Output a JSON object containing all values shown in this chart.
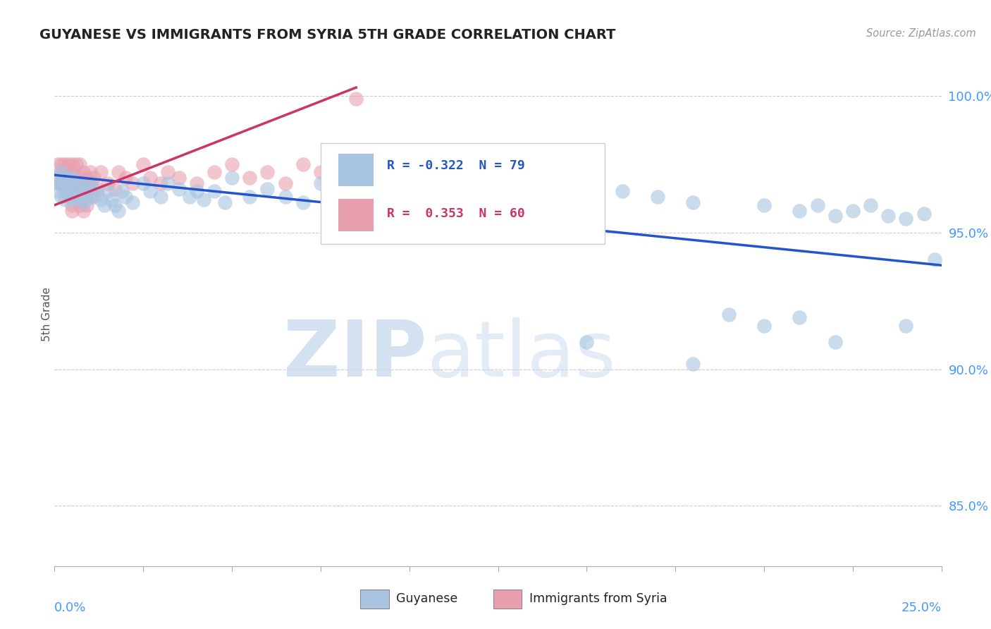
{
  "title": "GUYANESE VS IMMIGRANTS FROM SYRIA 5TH GRADE CORRELATION CHART",
  "source": "Source: ZipAtlas.com",
  "ylabel": "5th Grade",
  "ytick_values": [
    0.85,
    0.9,
    0.95,
    1.0
  ],
  "ytick_labels": [
    "85.0%",
    "90.0%",
    "95.0%",
    "100.0%"
  ],
  "xlim": [
    0.0,
    0.25
  ],
  "ylim": [
    0.828,
    1.012
  ],
  "legend1_label": "Guyanese",
  "legend2_label": "Immigrants from Syria",
  "R_blue": "-0.322",
  "N_blue": 79,
  "R_pink": "0.353",
  "N_pink": 60,
  "blue_color": "#a8c4e0",
  "pink_color": "#e8a0b0",
  "blue_line_color": "#2255cc",
  "pink_line_color": "#cc3366",
  "blue_line_x": [
    0.0,
    0.25
  ],
  "blue_line_y": [
    0.971,
    0.938
  ],
  "pink_line_x": [
    0.0,
    0.085
  ],
  "pink_line_y": [
    0.96,
    1.003
  ],
  "blue_dots_x": [
    0.001,
    0.001,
    0.001,
    0.002,
    0.002,
    0.002,
    0.003,
    0.003,
    0.003,
    0.004,
    0.004,
    0.005,
    0.005,
    0.005,
    0.006,
    0.006,
    0.007,
    0.007,
    0.008,
    0.008,
    0.009,
    0.009,
    0.01,
    0.01,
    0.011,
    0.012,
    0.013,
    0.014,
    0.015,
    0.016,
    0.017,
    0.018,
    0.019,
    0.02,
    0.022,
    0.025,
    0.027,
    0.03,
    0.032,
    0.035,
    0.038,
    0.04,
    0.042,
    0.045,
    0.048,
    0.05,
    0.055,
    0.06,
    0.065,
    0.07,
    0.075,
    0.08,
    0.09,
    0.1,
    0.11,
    0.12,
    0.13,
    0.14,
    0.15,
    0.16,
    0.17,
    0.18,
    0.19,
    0.2,
    0.21,
    0.215,
    0.22,
    0.225,
    0.23,
    0.235,
    0.24,
    0.245,
    0.248,
    0.15,
    0.18,
    0.2,
    0.21,
    0.22,
    0.24
  ],
  "blue_dots_y": [
    0.97,
    0.968,
    0.965,
    0.972,
    0.968,
    0.963,
    0.97,
    0.966,
    0.962,
    0.968,
    0.964,
    0.97,
    0.966,
    0.962,
    0.968,
    0.963,
    0.968,
    0.963,
    0.966,
    0.961,
    0.966,
    0.962,
    0.968,
    0.963,
    0.966,
    0.964,
    0.962,
    0.96,
    0.965,
    0.962,
    0.96,
    0.958,
    0.965,
    0.963,
    0.961,
    0.968,
    0.965,
    0.963,
    0.968,
    0.966,
    0.963,
    0.965,
    0.962,
    0.965,
    0.961,
    0.97,
    0.963,
    0.966,
    0.963,
    0.961,
    0.968,
    0.966,
    0.961,
    0.965,
    0.963,
    0.961,
    0.965,
    0.963,
    0.963,
    0.965,
    0.963,
    0.961,
    0.92,
    0.96,
    0.958,
    0.96,
    0.956,
    0.958,
    0.96,
    0.956,
    0.955,
    0.957,
    0.94,
    0.91,
    0.902,
    0.916,
    0.919,
    0.91,
    0.916
  ],
  "pink_dots_x": [
    0.001,
    0.001,
    0.001,
    0.002,
    0.002,
    0.002,
    0.003,
    0.003,
    0.003,
    0.004,
    0.004,
    0.004,
    0.005,
    0.005,
    0.005,
    0.006,
    0.006,
    0.006,
    0.007,
    0.007,
    0.007,
    0.008,
    0.008,
    0.009,
    0.009,
    0.01,
    0.01,
    0.011,
    0.012,
    0.013,
    0.015,
    0.017,
    0.018,
    0.02,
    0.022,
    0.025,
    0.027,
    0.03,
    0.032,
    0.035,
    0.04,
    0.045,
    0.05,
    0.055,
    0.06,
    0.065,
    0.07,
    0.075,
    0.08,
    0.085,
    0.005,
    0.005,
    0.005,
    0.004,
    0.006,
    0.007,
    0.008,
    0.009,
    0.01,
    0.011
  ],
  "pink_dots_y": [
    0.97,
    0.975,
    0.968,
    0.972,
    0.968,
    0.975,
    0.972,
    0.968,
    0.975,
    0.97,
    0.966,
    0.975,
    0.972,
    0.968,
    0.975,
    0.97,
    0.968,
    0.975,
    0.97,
    0.966,
    0.975,
    0.972,
    0.968,
    0.97,
    0.966,
    0.972,
    0.968,
    0.97,
    0.966,
    0.972,
    0.968,
    0.966,
    0.972,
    0.97,
    0.968,
    0.975,
    0.97,
    0.968,
    0.972,
    0.97,
    0.968,
    0.972,
    0.975,
    0.97,
    0.972,
    0.968,
    0.975,
    0.972,
    0.978,
    0.999,
    0.96,
    0.958,
    0.965,
    0.963,
    0.963,
    0.96,
    0.958,
    0.96,
    0.965,
    0.963
  ]
}
